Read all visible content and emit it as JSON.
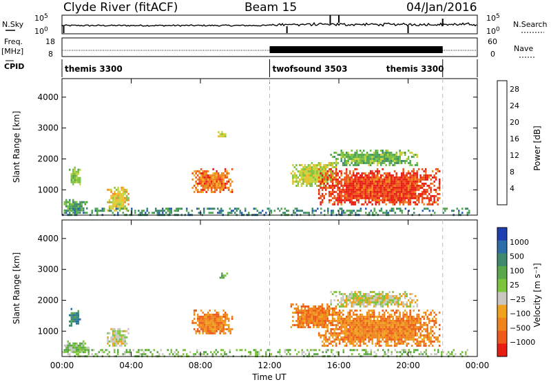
{
  "header": {
    "site": "Clyde River (fitACF)",
    "beam": "Beam 15",
    "date": "04/Jan/2016"
  },
  "strips": {
    "nsky_label": "N.Sky",
    "freq_label_top": "Freq.",
    "freq_label_bottom": "[MHz]",
    "cpid_label": "CPID",
    "nsearch_label": "N.Search",
    "nave_label": "Nave",
    "noise_ticks_left": [
      "10^5",
      "10^0"
    ],
    "noise_ticks_right": [
      "10^5",
      "10^0"
    ],
    "freq_ticks": [
      "18",
      "8"
    ],
    "nave_ticks": [
      "60",
      "0"
    ]
  },
  "cpid_segments": [
    {
      "label": "themis 3300",
      "start": 0,
      "end": 12
    },
    {
      "label": "twofsound 3503",
      "start": 12,
      "end": 22
    },
    {
      "label": "themis 3300",
      "start": 22,
      "end": 24
    }
  ],
  "colors": {
    "power": [
      "#1f1fe0",
      "#2d5fb4",
      "#3d8a6e",
      "#52a850",
      "#7dc240",
      "#c8d33c",
      "#f5b820",
      "#f08a1c",
      "#ee5518",
      "#e81d12"
    ],
    "velocity": [
      "#1f3fb0",
      "#2d6ea8",
      "#3d8a6e",
      "#5aa84a",
      "#7cc43c",
      "#c8c8c0",
      "#f0a21c",
      "#f0841c",
      "#ee5a18",
      "#e81d12"
    ]
  },
  "chart_data": [
    {
      "type": "heatmap",
      "name": "power-panel",
      "xlabel": "",
      "ylabel": "Slant Range [km]",
      "xlim": [
        0,
        24
      ],
      "ylim": [
        180,
        4600
      ],
      "x_ticks": [
        "00:00",
        "04:00",
        "08:00",
        "12:00",
        "16:00",
        "20:00",
        "00:00"
      ],
      "y_ticks": [
        1000,
        2000,
        3000,
        4000
      ],
      "colorbar": {
        "label": "Power [dB]",
        "ticks": [
          "4",
          "8",
          "12",
          "16",
          "20",
          "24",
          "28"
        ],
        "range": [
          0,
          30
        ]
      },
      "regions": [
        {
          "t0": 0.4,
          "t1": 1.0,
          "r0": 1200,
          "r1": 1750,
          "v": 14
        },
        {
          "t0": 0.0,
          "t1": 1.5,
          "r0": 300,
          "r1": 700,
          "v": 10
        },
        {
          "t0": 2.6,
          "t1": 3.8,
          "r0": 300,
          "r1": 1100,
          "v": 18
        },
        {
          "t0": 7.5,
          "t1": 9.8,
          "r0": 900,
          "r1": 1700,
          "v": 24
        },
        {
          "t0": 9.0,
          "t1": 9.5,
          "r0": 2700,
          "r1": 2900,
          "v": 16
        },
        {
          "t0": 13.2,
          "t1": 15.8,
          "r0": 1100,
          "r1": 1900,
          "v": 16
        },
        {
          "t0": 14.8,
          "t1": 21.8,
          "r0": 500,
          "r1": 1700,
          "v": 27
        },
        {
          "t0": 15.5,
          "t1": 20.5,
          "r0": 1800,
          "r1": 2300,
          "v": 12
        },
        {
          "t0": 0.0,
          "t1": 23.5,
          "r0": 180,
          "r1": 420,
          "v": 8
        }
      ]
    },
    {
      "type": "heatmap",
      "name": "velocity-panel",
      "xlabel": "Time UT",
      "ylabel": "Slant Range [km]",
      "xlim": [
        0,
        24
      ],
      "ylim": [
        180,
        4600
      ],
      "x_ticks": [
        "00:00",
        "04:00",
        "08:00",
        "12:00",
        "16:00",
        "20:00",
        "00:00"
      ],
      "y_ticks": [
        1000,
        2000,
        3000,
        4000
      ],
      "colorbar": {
        "label": "Velocity [m s⁻¹]",
        "ticks": [
          "1000",
          "500",
          "100",
          "25",
          "−25",
          "−100",
          "−500",
          "−1000"
        ]
      },
      "regions": [
        {
          "t0": 0.4,
          "t1": 1.0,
          "r0": 1200,
          "r1": 1750,
          "v": 2
        },
        {
          "t0": 0.0,
          "t1": 1.5,
          "r0": 300,
          "r1": 700,
          "v": 4
        },
        {
          "t0": 2.6,
          "t1": 3.8,
          "r0": 500,
          "r1": 1100,
          "v": 5
        },
        {
          "t0": 7.5,
          "t1": 9.8,
          "r0": 900,
          "r1": 1700,
          "v": 7
        },
        {
          "t0": 9.0,
          "t1": 9.5,
          "r0": 2700,
          "r1": 2900,
          "v": 3
        },
        {
          "t0": 13.2,
          "t1": 15.8,
          "r0": 1100,
          "r1": 1900,
          "v": 7
        },
        {
          "t0": 14.8,
          "t1": 21.8,
          "r0": 500,
          "r1": 1700,
          "v": 7
        },
        {
          "t0": 15.5,
          "t1": 20.5,
          "r0": 1800,
          "r1": 2300,
          "v": 5
        },
        {
          "t0": 0.0,
          "t1": 23.5,
          "r0": 180,
          "r1": 420,
          "v": 4
        }
      ]
    }
  ]
}
